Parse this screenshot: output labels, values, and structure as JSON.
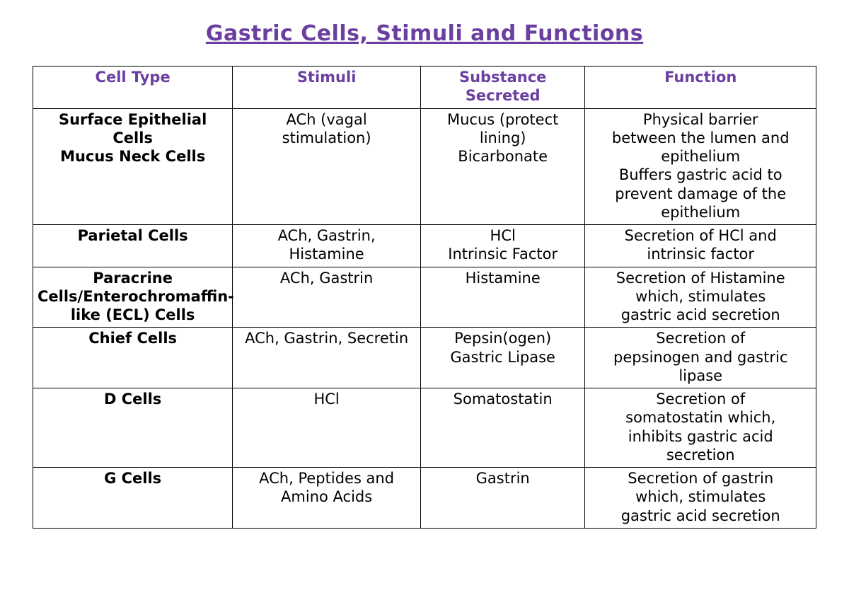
{
  "colors": {
    "title": "#6b3fa0",
    "header_text": "#6b3fa0",
    "body_text": "#000000",
    "border": "#000000",
    "background": "#ffffff"
  },
  "title": "Gastric Cells, Stimuli and Functions",
  "table": {
    "col_widths_pct": [
      25.5,
      24,
      21,
      29.5
    ],
    "columns": [
      "Cell Type",
      "Stimuli",
      "Substance Secreted",
      "Function"
    ],
    "rows": [
      {
        "cell_type": [
          "Surface Epithelial Cells",
          "Mucus Neck Cells"
        ],
        "stimuli": [
          "ACh (vagal",
          "stimulation)"
        ],
        "substance": [
          "Mucus (protect",
          "lining)",
          "Bicarbonate"
        ],
        "function": [
          "Physical barrier",
          "between the lumen and",
          "epithelium",
          "Buffers gastric acid to",
          "prevent damage of the",
          "epithelium"
        ]
      },
      {
        "cell_type": [
          "Parietal Cells"
        ],
        "stimuli": [
          "ACh, Gastrin,",
          "Histamine"
        ],
        "substance": [
          "HCl",
          "Intrinsic Factor"
        ],
        "function": [
          "Secretion of HCl and",
          "intrinsic factor"
        ]
      },
      {
        "cell_type": [
          "Paracrine",
          "Cells/Enterochromaffin-",
          "like (ECL) Cells"
        ],
        "stimuli": [
          "ACh, Gastrin"
        ],
        "substance": [
          "Histamine"
        ],
        "function": [
          "Secretion of Histamine",
          "which, stimulates",
          "gastric acid secretion"
        ]
      },
      {
        "cell_type": [
          "Chief Cells"
        ],
        "stimuli": [
          "ACh, Gastrin, Secretin"
        ],
        "substance": [
          "Pepsin(ogen)",
          "Gastric Lipase"
        ],
        "function": [
          "Secretion of",
          "pepsinogen and gastric",
          "lipase"
        ]
      },
      {
        "cell_type": [
          "D Cells"
        ],
        "stimuli": [
          "HCl"
        ],
        "substance": [
          "Somatostatin"
        ],
        "function": [
          "Secretion of",
          "somatostatin which,",
          "inhibits gastric acid",
          "secretion"
        ]
      },
      {
        "cell_type": [
          "G Cells"
        ],
        "stimuli": [
          "ACh, Peptides and",
          "Amino Acids"
        ],
        "substance": [
          "Gastrin"
        ],
        "function": [
          "Secretion of gastrin",
          "which, stimulates",
          "gastric acid secretion"
        ]
      }
    ]
  }
}
